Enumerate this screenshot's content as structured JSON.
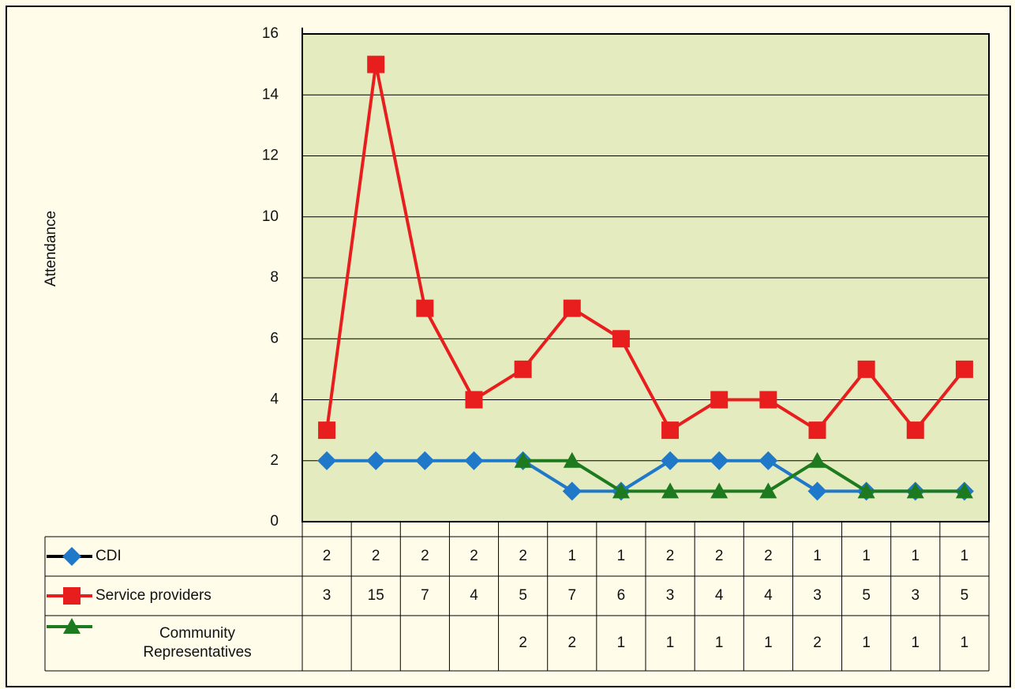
{
  "chart_data": {
    "type": "line",
    "y_label": "Attendance",
    "categories": [
      null,
      null,
      null,
      null,
      null,
      null,
      null,
      null,
      null,
      null,
      null,
      null,
      null,
      null
    ],
    "series": [
      {
        "name": "CDI",
        "color": "#1f78c8",
        "marker": "diamond",
        "values": [
          2,
          2,
          2,
          2,
          2,
          1,
          1,
          2,
          2,
          2,
          1,
          1,
          1,
          1
        ]
      },
      {
        "name": "Service providers",
        "color": "#e81e1e",
        "marker": "square",
        "values": [
          3,
          15,
          7,
          4,
          5,
          7,
          6,
          3,
          4,
          4,
          3,
          5,
          3,
          5
        ]
      },
      {
        "name": "Community Representatives",
        "color": "#1e7a1e",
        "marker": "triangle",
        "values": [
          null,
          null,
          null,
          null,
          2,
          2,
          1,
          1,
          1,
          1,
          2,
          1,
          1,
          1
        ]
      }
    ],
    "ylim": [
      0,
      16
    ],
    "yticks": [
      0,
      2,
      4,
      6,
      8,
      10,
      12,
      14,
      16
    ],
    "grid": true,
    "data_table": true
  }
}
